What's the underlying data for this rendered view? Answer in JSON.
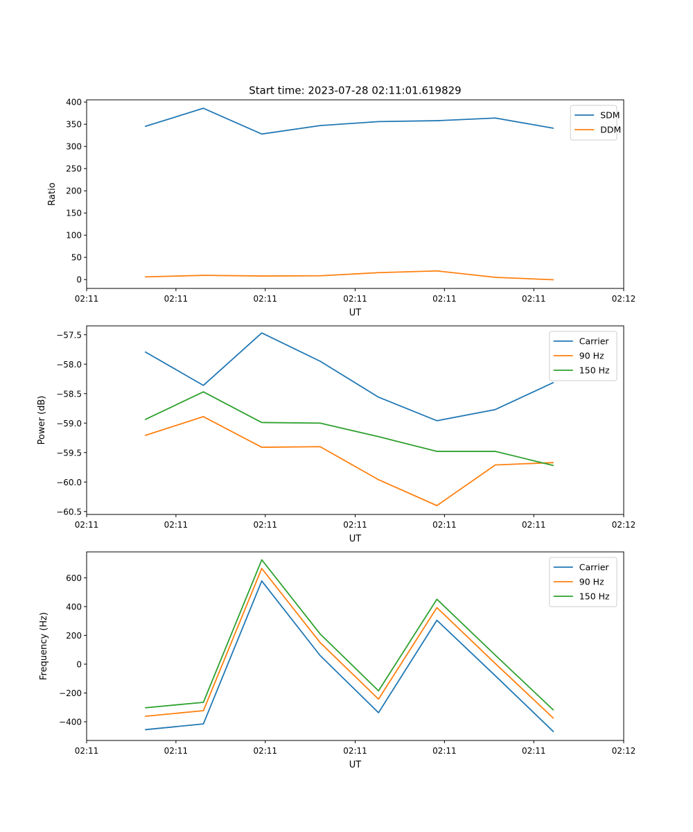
{
  "figure_title": "Start time: 2023-07-28 02:11:01.619829",
  "colors": {
    "blue": "#1f77b4",
    "orange": "#ff7f0e",
    "green": "#2ca02c"
  },
  "chart_data": [
    {
      "type": "line",
      "title": "Start time: 2023-07-28 02:11:01.619829",
      "xlabel": "UT",
      "ylabel": "Ratio",
      "x": [
        1,
        2,
        3,
        4,
        5,
        6,
        7,
        8
      ],
      "xlim": [
        0,
        9.2
      ],
      "xticks": [
        0,
        1.53,
        3.06,
        4.6,
        6.13,
        7.66,
        9.2
      ],
      "xtick_labels": [
        "02:11",
        "02:11",
        "02:11",
        "02:11",
        "02:11",
        "02:11",
        "02:12"
      ],
      "ylim": [
        -20,
        405
      ],
      "yticks": [
        0,
        50,
        100,
        150,
        200,
        250,
        300,
        350,
        400
      ],
      "ytick_labels": [
        "0",
        "50",
        "100",
        "150",
        "200",
        "250",
        "300",
        "350",
        "400"
      ],
      "legend_position": "upper-right",
      "series": [
        {
          "name": "SDM",
          "color": "#1f77b4",
          "values": [
            345,
            386,
            328,
            347,
            356,
            358,
            364,
            341
          ]
        },
        {
          "name": "DDM",
          "color": "#ff7f0e",
          "values": [
            6,
            9.5,
            8,
            8.5,
            15.5,
            19.5,
            5,
            -0.5
          ]
        }
      ]
    },
    {
      "type": "line",
      "title": "",
      "xlabel": "UT",
      "ylabel": "Power (dB)",
      "x": [
        1,
        2,
        3,
        4,
        5,
        6,
        7,
        8
      ],
      "xlim": [
        0,
        9.2
      ],
      "xticks": [
        0,
        1.53,
        3.06,
        4.6,
        6.13,
        7.66,
        9.2
      ],
      "xtick_labels": [
        "02:11",
        "02:11",
        "02:11",
        "02:11",
        "02:11",
        "02:11",
        "02:12"
      ],
      "ylim": [
        -60.55,
        -57.35
      ],
      "yticks": [
        -57.5,
        -58.0,
        -58.5,
        -59.0,
        -59.5,
        -60.0,
        -60.5
      ],
      "ytick_labels": [
        "−57.5",
        "−58.0",
        "−58.5",
        "−59.0",
        "−59.5",
        "−60.0",
        "−60.5"
      ],
      "legend_position": "upper-right",
      "series": [
        {
          "name": "Carrier",
          "color": "#1f77b4",
          "values": [
            -57.79,
            -58.36,
            -57.47,
            -57.95,
            -58.56,
            -58.96,
            -58.77,
            -58.31
          ]
        },
        {
          "name": "90 Hz",
          "color": "#ff7f0e",
          "values": [
            -59.21,
            -58.89,
            -59.41,
            -59.4,
            -59.96,
            -60.4,
            -59.71,
            -59.67
          ]
        },
        {
          "name": "150 Hz",
          "color": "#2ca02c",
          "values": [
            -58.94,
            -58.47,
            -58.99,
            -59.0,
            -59.23,
            -59.48,
            -59.48,
            -59.72
          ]
        }
      ]
    },
    {
      "type": "line",
      "title": "",
      "xlabel": "UT",
      "ylabel": "Frequency (Hz)",
      "x": [
        1,
        2,
        3,
        4,
        5,
        6,
        7,
        8
      ],
      "xlim": [
        0,
        9.2
      ],
      "xticks": [
        0,
        1.53,
        3.06,
        4.6,
        6.13,
        7.66,
        9.2
      ],
      "xtick_labels": [
        "02:11",
        "02:11",
        "02:11",
        "02:11",
        "02:11",
        "02:11",
        "02:12"
      ],
      "ylim": [
        -530,
        780
      ],
      "yticks": [
        600,
        400,
        200,
        0,
        -200,
        -400
      ],
      "ytick_labels": [
        "600",
        "400",
        "200",
        "0",
        "−200",
        "−400"
      ],
      "legend_position": "upper-right",
      "series": [
        {
          "name": "Carrier",
          "color": "#1f77b4",
          "values": [
            -455,
            -415,
            578,
            60,
            -337,
            305,
            -80,
            -470
          ]
        },
        {
          "name": "90 Hz",
          "color": "#ff7f0e",
          "values": [
            -362,
            -323,
            665,
            150,
            -243,
            393,
            5,
            -377
          ]
        },
        {
          "name": "150 Hz",
          "color": "#2ca02c",
          "values": [
            -303,
            -265,
            725,
            210,
            -185,
            451,
            63,
            -320
          ]
        }
      ]
    }
  ]
}
